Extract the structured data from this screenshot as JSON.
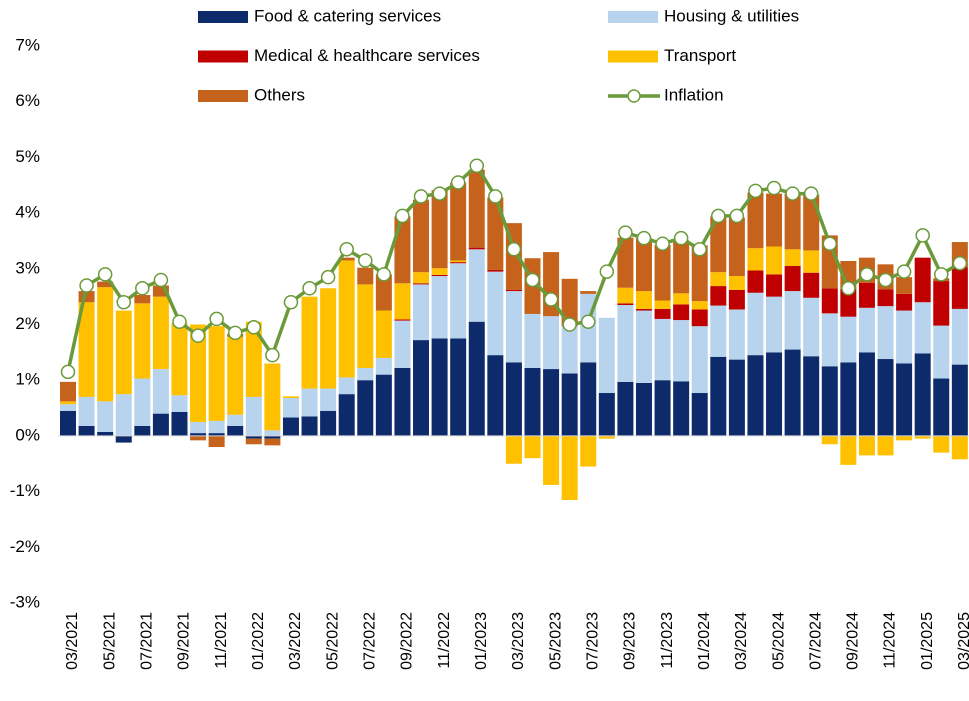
{
  "chart_data": {
    "type": "stacked-bar-line",
    "categories": [
      "03/2021",
      null,
      "05/2021",
      null,
      "07/2021",
      null,
      "09/2021",
      null,
      "11/2021",
      null,
      "01/2022",
      null,
      "03/2022",
      null,
      "05/2022",
      null,
      "07/2022",
      null,
      "09/2022",
      null,
      "11/2022",
      null,
      "01/2023",
      null,
      "03/2023",
      null,
      "05/2023",
      null,
      "07/2023",
      null,
      "09/2023",
      null,
      "11/2023",
      null,
      "01/2024",
      null,
      "03/2024",
      null,
      "05/2024",
      null,
      "07/2024",
      null,
      "09/2024",
      null,
      "11/2024",
      null,
      "01/2025",
      null,
      "03/2025"
    ],
    "series": [
      {
        "name": "Food & catering services",
        "color": "#0d2a6b",
        "values": [
          0.45,
          0.18,
          0.07,
          -0.12,
          0.18,
          0.4,
          0.43,
          0.05,
          0.05,
          0.18,
          -0.05,
          -0.05,
          0.33,
          0.35,
          0.45,
          0.75,
          1.0,
          1.1,
          1.22,
          1.72,
          1.75,
          1.75,
          2.05,
          1.45,
          1.32,
          1.22,
          1.2,
          1.12,
          1.32,
          0.77,
          0.97,
          0.95,
          1.0,
          0.98,
          0.77,
          1.42,
          1.37,
          1.45,
          1.5,
          1.55,
          1.43,
          1.25,
          1.32,
          1.5,
          1.38,
          1.3,
          1.48,
          1.03,
          1.28
        ]
      },
      {
        "name": "Housing & utilities",
        "color": "#b7d3ee",
        "values": [
          0.12,
          0.52,
          0.55,
          0.75,
          0.85,
          0.8,
          0.3,
          0.2,
          0.22,
          0.2,
          0.7,
          0.1,
          0.35,
          0.5,
          0.4,
          0.3,
          0.22,
          0.3,
          0.85,
          1.0,
          1.12,
          1.35,
          1.3,
          1.5,
          1.28,
          0.97,
          0.95,
          0.85,
          1.23,
          1.35,
          1.38,
          1.3,
          1.1,
          1.1,
          1.2,
          0.92,
          0.9,
          1.12,
          1.0,
          1.05,
          1.05,
          0.95,
          0.82,
          0.8,
          0.95,
          0.95,
          0.92,
          0.95,
          1.0
        ]
      },
      {
        "name": "Medical & healthcare services",
        "color": "#c00000",
        "values": [
          0,
          0,
          0,
          0,
          0,
          0,
          0,
          0,
          0,
          0,
          0,
          0,
          0,
          0,
          0,
          0,
          0,
          0,
          0.02,
          0.02,
          0.02,
          0.02,
          0.03,
          0.03,
          0.02,
          0,
          0,
          0,
          0,
          0,
          0.03,
          0.03,
          0.18,
          0.28,
          0.3,
          0.35,
          0.35,
          0.4,
          0.4,
          0.45,
          0.45,
          0.45,
          0.5,
          0.45,
          0.3,
          0.3,
          0.8,
          0.8,
          0.75
        ]
      },
      {
        "name": "Transport",
        "color": "#ffc000",
        "values": [
          0.05,
          1.7,
          2.05,
          1.5,
          1.35,
          1.3,
          1.3,
          1.75,
          1.7,
          1.4,
          1.35,
          1.2,
          0.03,
          1.65,
          1.8,
          2.1,
          1.5,
          0.85,
          0.65,
          0.2,
          0.12,
          0.03,
          0,
          0,
          -0.5,
          -0.4,
          -0.88,
          -1.15,
          -0.55,
          -0.05,
          0.28,
          0.32,
          0.15,
          0.2,
          0.15,
          0.25,
          0.25,
          0.4,
          0.5,
          0.3,
          0.4,
          -0.15,
          -0.52,
          -0.35,
          -0.35,
          -0.08,
          -0.05,
          -0.3,
          -0.42
        ]
      },
      {
        "name": "Others",
        "color": "#c5621b",
        "values": [
          0.35,
          0.2,
          0.1,
          0,
          0.15,
          0.2,
          0,
          -0.08,
          -0.2,
          0.05,
          -0.1,
          -0.12,
          0,
          0,
          0,
          0.05,
          0.3,
          0.65,
          1.2,
          1.3,
          1.4,
          1.4,
          1.4,
          1.3,
          1.2,
          1.0,
          1.15,
          0.85,
          0.05,
          0,
          0.9,
          0.95,
          1.0,
          0.95,
          1.0,
          1.0,
          1.05,
          1.0,
          0.95,
          1.0,
          1.0,
          0.95,
          0.5,
          0.45,
          0.45,
          0.3,
          0,
          0.05,
          0.45
        ]
      },
      {
        "name": "Inflation",
        "color": "#6a9a3a",
        "kind": "line",
        "values": [
          1.15,
          2.7,
          2.9,
          2.4,
          2.65,
          2.8,
          2.05,
          1.8,
          2.1,
          1.85,
          1.95,
          1.45,
          2.4,
          2.65,
          2.85,
          3.35,
          3.15,
          2.9,
          3.95,
          4.3,
          4.35,
          4.55,
          4.85,
          4.3,
          3.35,
          2.8,
          2.45,
          2.0,
          2.05,
          2.95,
          3.65,
          3.55,
          3.45,
          3.55,
          3.35,
          3.95,
          3.95,
          4.4,
          4.45,
          4.35,
          4.35,
          3.45,
          2.65,
          2.9,
          2.8,
          2.95,
          3.6,
          2.9,
          3.1
        ]
      }
    ],
    "ylim": [
      -3,
      7
    ],
    "yticks": [
      {
        "value": -3,
        "label": "-3%"
      },
      {
        "value": -2,
        "label": "-2%"
      },
      {
        "value": -1,
        "label": "-1%"
      },
      {
        "value": 0,
        "label": "0%"
      },
      {
        "value": 1,
        "label": "1%"
      },
      {
        "value": 2,
        "label": "2%"
      },
      {
        "value": 3,
        "label": "3%"
      },
      {
        "value": 4,
        "label": "4%"
      },
      {
        "value": 5,
        "label": "5%"
      },
      {
        "value": 6,
        "label": "6%"
      },
      {
        "value": 7,
        "label": "7%"
      }
    ],
    "grid": false,
    "legend": "top"
  }
}
